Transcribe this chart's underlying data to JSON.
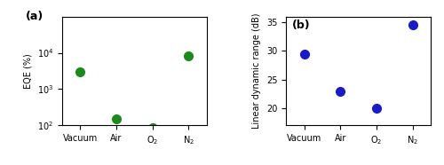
{
  "categories": [
    "Vacuum",
    "Air",
    "O$_2$",
    "N$_2$"
  ],
  "eqe_values": [
    3000,
    150,
    85,
    8000
  ],
  "ldr_values": [
    29.5,
    23.0,
    20.0,
    34.5
  ],
  "eqe_color": "#1a8c1a",
  "ldr_color": "#1a1acd",
  "eqe_ylabel": "EQE (%)",
  "ldr_ylabel": "Linear dynamic range (dB)",
  "panel_a_label": "(a)",
  "panel_b_label": "(b)",
  "eqe_ylim": [
    100,
    100000
  ],
  "eqe_yticks": [
    100,
    1000,
    10000
  ],
  "ldr_ylim": [
    17,
    36
  ],
  "ldr_yticks": [
    20,
    25,
    30,
    35
  ],
  "marker_size": 7,
  "marker_style": "o",
  "tick_labelsize": 7,
  "ylabel_fontsize": 7,
  "label_fontsize": 9
}
